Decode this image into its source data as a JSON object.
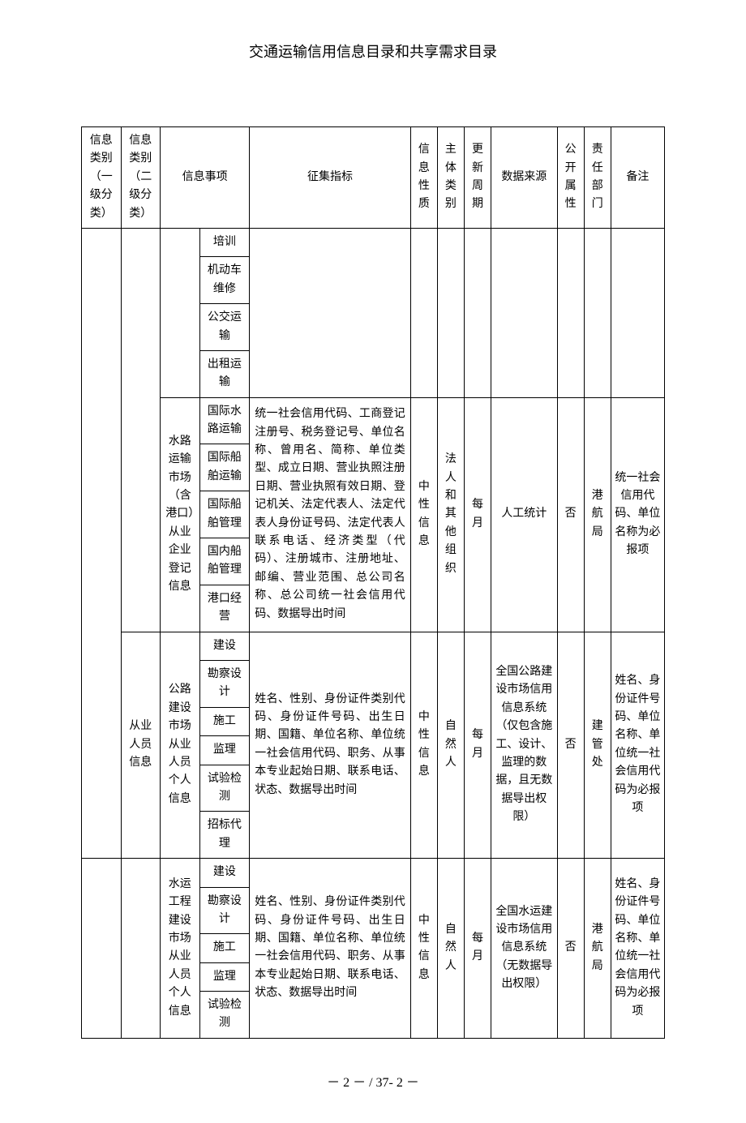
{
  "title": "交通运输信用信息目录和共享需求目录",
  "headers": {
    "cat1": "信息类别（一级分类）",
    "cat2": "信息类别（二级分类）",
    "item": "信息事项",
    "indicator": "征集指标",
    "nature": "信息性质",
    "subject": "主体类别",
    "cycle": "更新周期",
    "source": "数据来源",
    "public": "公开属性",
    "dept": "责任部门",
    "remark": "备注"
  },
  "smallItems": {
    "i1": "培训",
    "i2": "机动车维修",
    "i3": "公交运输",
    "i4": "出租运输"
  },
  "waterGroup": {
    "itemA": "水路运输市场（含港口）从业企业登记信息",
    "sub1": "国际水路运输",
    "sub2": "国际船舶运输",
    "sub3": "国际船舶管理",
    "sub4": "国内船舶管理",
    "sub5": "港口经营",
    "indicator": "统一社会信用代码、工商登记注册号、税务登记号、单位名称、曾用名、简称、单位类型、成立日期、营业执照注册日期、营业执照有效日期、登记机关、法定代表人、法定代表人身份证号码、法定代表人联系电话、经济类型（代码）、注册城市、注册地址、邮编、营业范围、总公司名称、总公司统一社会信用代码、数据导出时间",
    "nature": "中性信息",
    "subject": "法人和其他组织",
    "cycle": "每月",
    "source": "人工统计",
    "public": "否",
    "dept": "港航局",
    "remark": "统一社会信用代码、单位名称为必报项"
  },
  "cat2Personnel": "从业人员信息",
  "roadGroup": {
    "itemA": "公路建设市场从业人员个人信息",
    "sub1": "建设",
    "sub2": "勘察设计",
    "sub3": "施工",
    "sub4": "监理",
    "sub5": "试验检测",
    "sub6": "招标代理",
    "indicator": "姓名、性别、身份证件类别代码、身份证件号码、出生日期、国籍、单位名称、单位统一社会信用代码、职务、从事本专业起始日期、联系电话、状态、数据导出时间",
    "nature": "中性信息",
    "subject": "自然人",
    "cycle": "每月",
    "source": "全国公路建设市场信用信息系统（仅包含施工、设计、监理的数据，且无数据导出权限）",
    "public": "否",
    "dept": "建管处",
    "remark": "姓名、身份证件号码、单位名称、单位统一社会信用代码为必报项"
  },
  "waterEngGroup": {
    "itemA": "水运工程建设市场从业人员个人信息",
    "sub1": "建设",
    "sub2": "勘察设计",
    "sub3": "施工",
    "sub4": "监理",
    "sub5": "试验检测",
    "indicator": "姓名、性别、身份证件类别代码、身份证件号码、出生日期、国籍、单位名称、单位统一社会信用代码、职务、从事本专业起始日期、联系电话、状态、数据导出时间",
    "nature": "中性信息",
    "subject": "自然人",
    "cycle": "每月",
    "source": "全国水运建设市场信用信息系统（无数据导出权限）",
    "public": "否",
    "dept": "港航局",
    "remark": "姓名、身份证件号码、单位名称、单位统一社会信用代码为必报项"
  },
  "footer": "－ 2 － / 37- 2 －"
}
